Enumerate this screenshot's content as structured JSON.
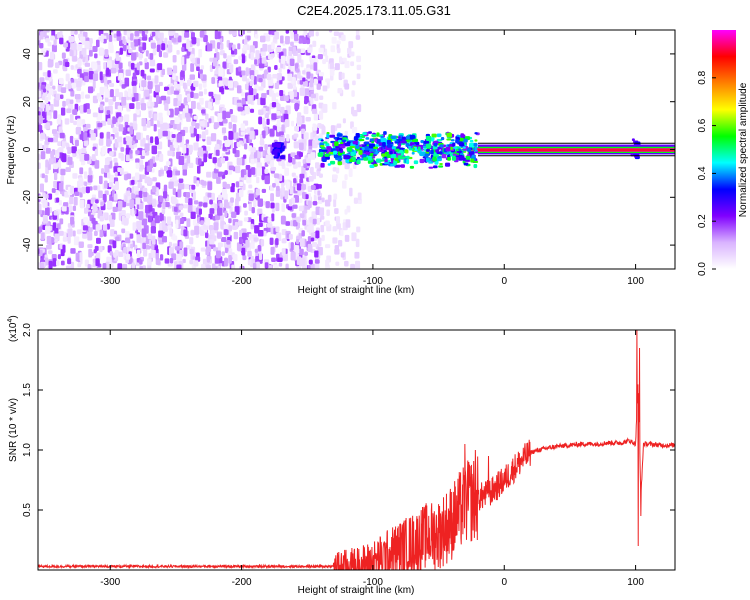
{
  "title": "C2E4.2025.173.11.05.G31",
  "chart_data": [
    {
      "type": "heatmap",
      "xlabel": "Height of straight line (km)",
      "ylabel": "Frequency (Hz)",
      "xlim": [
        -355,
        130
      ],
      "ylim": [
        -50,
        50
      ],
      "xticks": [
        -300,
        -200,
        -100,
        0,
        100
      ],
      "yticks": [
        -40,
        -20,
        0,
        20,
        40
      ],
      "colorbar": {
        "label": "Normalized spectral amplitude",
        "range": [
          0,
          1
        ],
        "ticks": [
          0.0,
          0.2,
          0.4,
          0.6,
          0.8
        ],
        "colors": [
          "#ffffff",
          "#d9b3ff",
          "#8000ff",
          "#0000ff",
          "#00ffff",
          "#00ff00",
          "#ffff00",
          "#ff8000",
          "#ff0000",
          "#ff00ff"
        ]
      },
      "regions": [
        {
          "x": [
            -355,
            -140
          ],
          "freq_spread": [
            -50,
            50
          ],
          "amplitude": [
            0.05,
            0.2
          ]
        },
        {
          "x": [
            -140,
            -110
          ],
          "freq_spread": [
            -50,
            50
          ],
          "amplitude": [
            0.02,
            0.08
          ]
        },
        {
          "x": [
            -175,
            -168
          ],
          "freq_spread": [
            -4,
            4
          ],
          "amplitude": [
            0.25,
            0.35
          ]
        },
        {
          "x": [
            -140,
            -20
          ],
          "freq_spread": [
            -8,
            8
          ],
          "amplitude": [
            0.2,
            0.6
          ]
        },
        {
          "x": [
            -20,
            130
          ],
          "freq_spread": [
            -1,
            1
          ],
          "amplitude": [
            0.9,
            1.0
          ]
        },
        {
          "x": [
            98,
            102
          ],
          "freq_spread": [
            -5,
            5
          ],
          "amplitude": [
            0.2,
            0.35
          ]
        }
      ]
    },
    {
      "type": "line",
      "xlabel": "Height of straight line (km)",
      "ylabel": "SNR (10 * v/v)",
      "yscale_label": "(x10",
      "yscale_exp": "4",
      "yscale_close": ")",
      "xlim": [
        -355,
        130
      ],
      "ylim": [
        0,
        2.0
      ],
      "xticks": [
        -300,
        -200,
        -100,
        0,
        100
      ],
      "yticks": [
        0.5,
        1.0,
        1.5,
        2.0
      ],
      "ytick_labels": [
        "0.5",
        "1.0",
        "1.5",
        "2.0"
      ],
      "color": "#ee2222",
      "x": [
        -355,
        -300,
        -200,
        -130,
        -110,
        -100,
        -90,
        -80,
        -70,
        -60,
        -50,
        -40,
        -30,
        -25,
        -20,
        -10,
        0,
        10,
        20,
        30,
        40,
        50,
        60,
        70,
        80,
        90,
        95,
        100,
        102,
        104,
        106,
        110,
        120,
        130
      ],
      "y": [
        0.03,
        0.03,
        0.03,
        0.03,
        0.04,
        0.06,
        0.12,
        0.18,
        0.22,
        0.28,
        0.3,
        0.4,
        0.55,
        0.58,
        0.6,
        0.65,
        0.75,
        0.88,
        0.98,
        1.01,
        1.03,
        1.04,
        1.05,
        1.05,
        1.06,
        1.06,
        1.08,
        1.05,
        1.6,
        0.6,
        1.05,
        1.05,
        1.04,
        1.04
      ],
      "spikes": [
        {
          "x": -30,
          "y": 1.05
        },
        {
          "x": -27,
          "y": 0.9
        },
        {
          "x": -22,
          "y": 1.0
        },
        {
          "x": -12,
          "y": 0.95
        },
        {
          "x": 101,
          "y": 2.0
        },
        {
          "x": 102,
          "y": 0.2
        },
        {
          "x": 103,
          "y": 1.85
        },
        {
          "x": 104,
          "y": 0.45
        }
      ]
    }
  ]
}
